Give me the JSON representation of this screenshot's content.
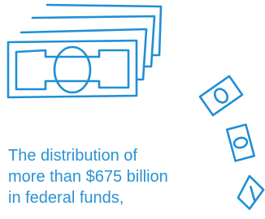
{
  "caption": {
    "lines": [
      "The distribution of",
      "more than $675 billion",
      "in federal funds,"
    ]
  }
}
